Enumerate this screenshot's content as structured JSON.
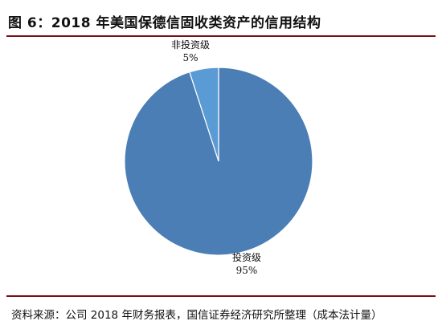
{
  "title": "图 6：2018 年美国保德信固收类资产的信用结构",
  "source": "资料来源：公司 2018 年财务报表，国信证券经济研究所整理（成本法计量）",
  "chart_data": {
    "type": "pie",
    "title": "图 6：2018 年美国保德信固收类资产的信用结构",
    "slices": [
      {
        "name": "投资级",
        "value": 95,
        "label": "95%",
        "color": "#4a7eb5"
      },
      {
        "name": "非投资级",
        "value": 5,
        "label": "5%",
        "color": "#5b9bd5"
      }
    ],
    "legend": "none",
    "start_angle": "12 o'clock, clockwise",
    "data_labels": "outside, category above percent"
  }
}
